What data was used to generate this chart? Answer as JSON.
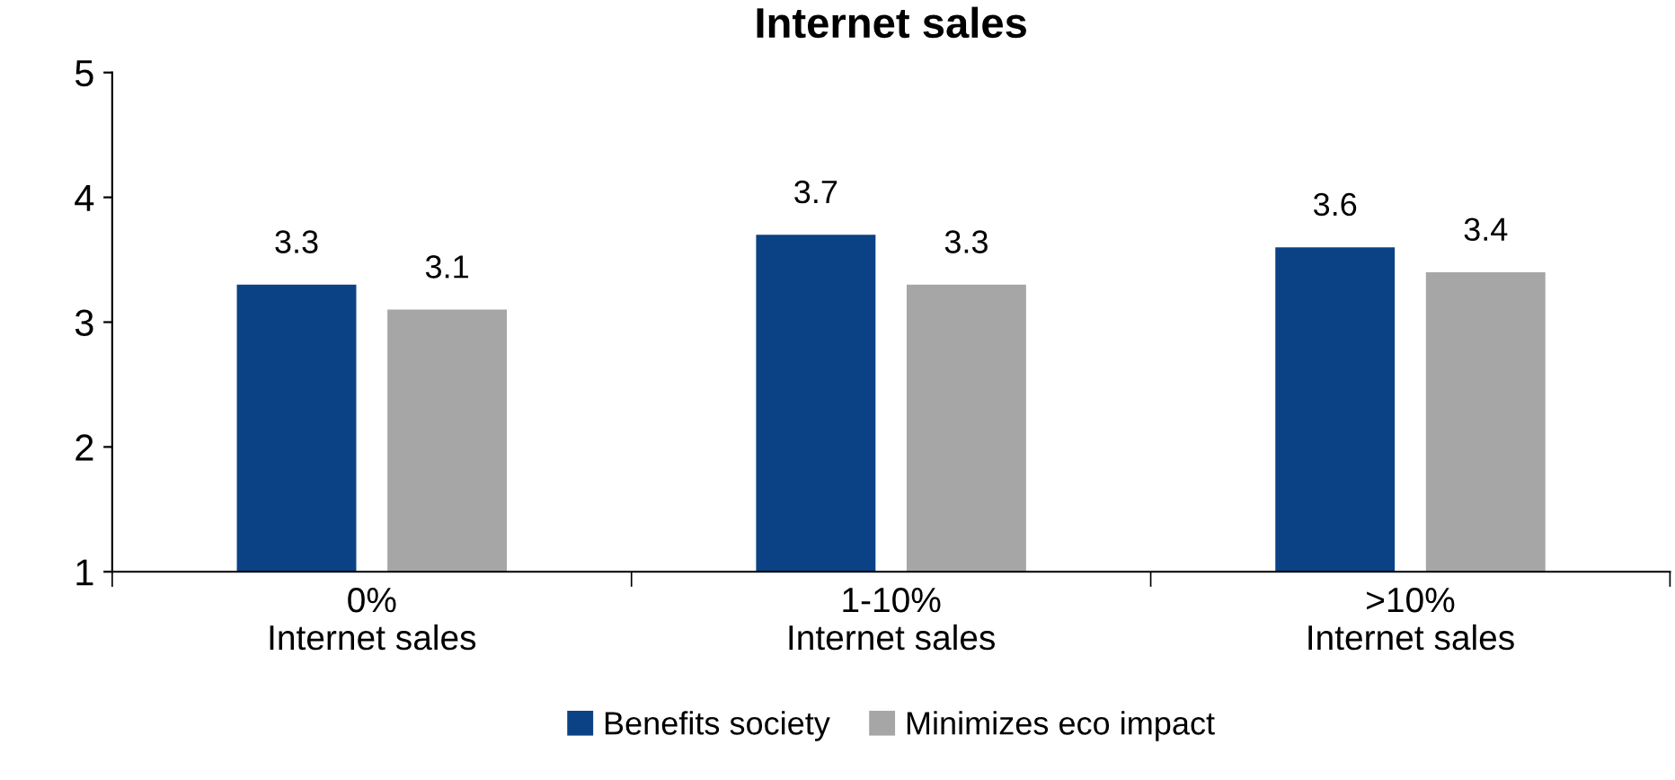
{
  "chart_data": {
    "type": "bar",
    "title": "Internet sales",
    "categories": [
      "0%\nInternet sales",
      "1-10%\nInternet sales",
      ">10%\nInternet sales"
    ],
    "series": [
      {
        "name": "Benefits society",
        "color": "#0b4285",
        "values": [
          3.3,
          3.7,
          3.6
        ]
      },
      {
        "name": "Minimizes eco impact",
        "color": "#a6a6a6",
        "values": [
          3.1,
          3.3,
          3.4
        ]
      }
    ],
    "ylim": [
      1,
      5
    ],
    "yticks": [
      1,
      2,
      3,
      4,
      5
    ],
    "grid": false,
    "legend": "bottom",
    "data_labels": true
  }
}
